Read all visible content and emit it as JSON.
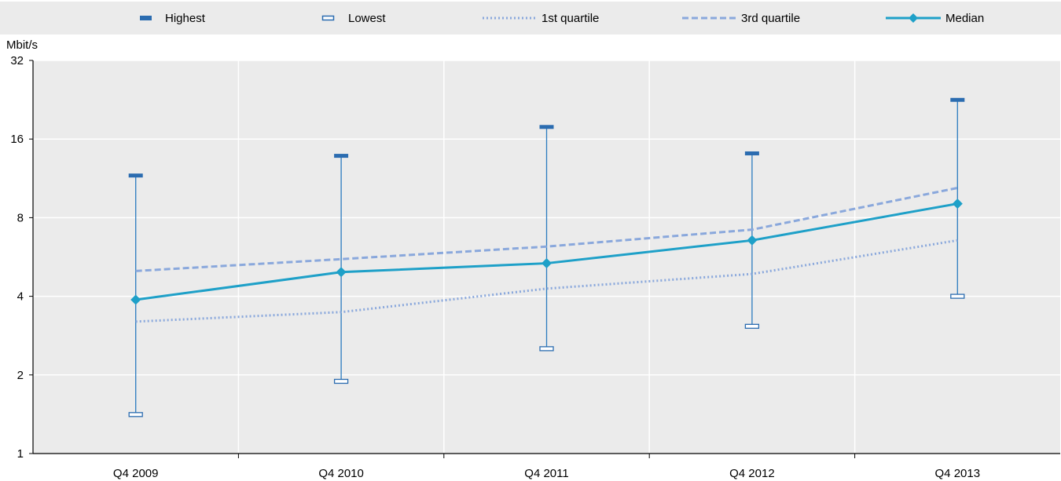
{
  "chart_data": {
    "type": "line",
    "y_unit": "Mbit/s",
    "y_scale": "log2",
    "ylim": [
      1,
      32
    ],
    "y_ticks": [
      1,
      2,
      4,
      8,
      16,
      32
    ],
    "categories": [
      "Q4 2009",
      "Q4 2010",
      "Q4 2011",
      "Q4 2012",
      "Q4 2013"
    ],
    "grid": true,
    "legend_position": "top",
    "legend": [
      {
        "key": "highest",
        "label": "Highest"
      },
      {
        "key": "lowest",
        "label": "Lowest"
      },
      {
        "key": "q1",
        "label": "1st quartile"
      },
      {
        "key": "q3",
        "label": "3rd quartile"
      },
      {
        "key": "median",
        "label": "Median"
      }
    ],
    "series": [
      {
        "key": "highest",
        "name": "Highest",
        "values": [
          11.6,
          13.8,
          17.8,
          14.1,
          22.6
        ]
      },
      {
        "key": "lowest",
        "name": "Lowest",
        "values": [
          1.41,
          1.89,
          2.52,
          3.07,
          4.0
        ]
      },
      {
        "key": "q1",
        "name": "1st quartile",
        "values": [
          3.2,
          3.48,
          4.28,
          4.87,
          6.55
        ]
      },
      {
        "key": "q3",
        "name": "3rd quartile",
        "values": [
          5.0,
          5.55,
          6.2,
          7.2,
          10.4
        ]
      },
      {
        "key": "median",
        "name": "Median",
        "values": [
          3.88,
          4.95,
          5.35,
          6.55,
          9.05
        ]
      }
    ],
    "colors": {
      "highest": "#2b6cb0",
      "lowest": "#2b6cb0",
      "whisker": "#2b7bbf",
      "q1": "#8aa8dc",
      "q3": "#8aa8dc",
      "median": "#1ea0c8",
      "plot_bg": "#ebebeb",
      "legend_bg": "#ebebeb",
      "grid": "#ffffff"
    }
  }
}
